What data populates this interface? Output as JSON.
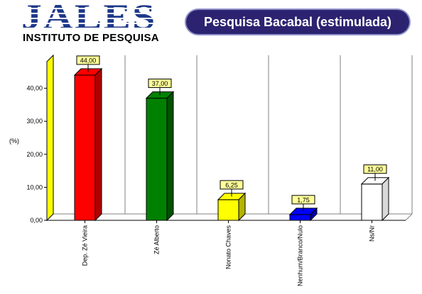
{
  "header": {
    "logo_word": "JALES",
    "logo_subtitle": "INSTITUTO DE PESQUISA",
    "title": "Pesquisa Bacabal (estimulada)"
  },
  "chart_data": {
    "type": "bar",
    "ylabel": "(%)",
    "ylim": [
      0,
      50
    ],
    "yticks": [
      0,
      10,
      20,
      30,
      40
    ],
    "ytick_labels": [
      "0,00",
      "10,00",
      "20,00",
      "30,00",
      "40,00"
    ],
    "categories": [
      "Dep. Zé Vieira",
      "Zé Alberto",
      "Nonato Chaves",
      "Nenhum/Branco/Nulo",
      "Ns/Nr"
    ],
    "values": [
      44.0,
      37.0,
      6.25,
      1.75,
      11.0
    ],
    "value_labels": [
      "44,00",
      "37,00",
      "6,25",
      "1,75",
      "11,00"
    ],
    "colors": [
      "#ff0000",
      "#008000",
      "#ffff00",
      "#0000ff",
      "#ffffff"
    ],
    "side_colors": [
      "#b00000",
      "#005200",
      "#b3b300",
      "#0000a8",
      "#d9d9d9"
    ],
    "label_bg": "#ffff99",
    "grid": "vertical",
    "legend": "none"
  }
}
